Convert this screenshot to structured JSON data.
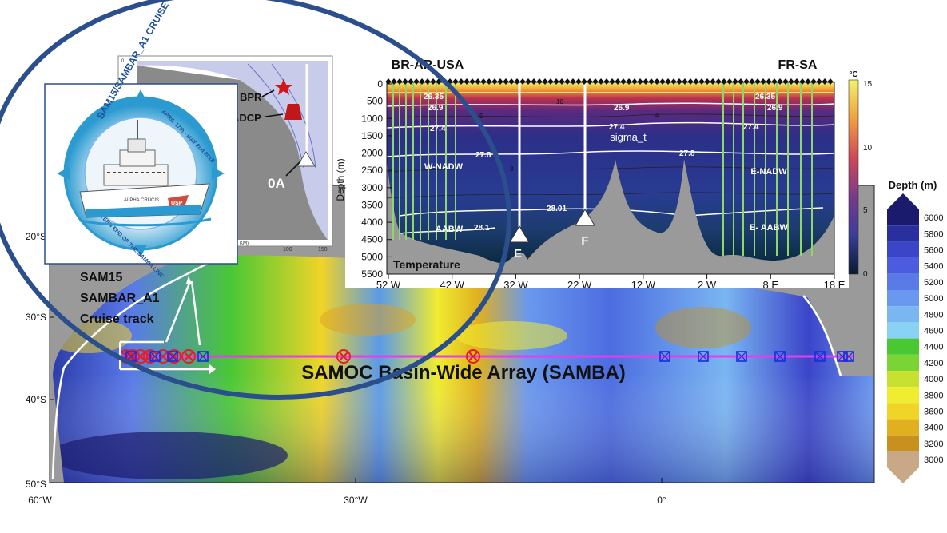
{
  "map": {
    "lat_labels": [
      "20°S",
      "30°S",
      "40°S",
      "50°S"
    ],
    "lon_labels": [
      "60°W",
      "30°W",
      "0°"
    ],
    "array_title": "SAMOC Basin-Wide Array (SAMBA)",
    "cruise_label": [
      "SAM15",
      "SAMBAR_A1",
      "Cruise track"
    ],
    "colors": {
      "array_line": "#e83cf0",
      "circle_marker": "#e0202a",
      "square_marker": "#1a2be0",
      "ellipse": "#2b4f8c"
    }
  },
  "depth_legend": {
    "title": "Depth (m)",
    "labels": [
      "6000",
      "5800",
      "5600",
      "5400",
      "5200",
      "5000",
      "4800",
      "4600",
      "4400",
      "4200",
      "4000",
      "3800",
      "3600",
      "3400",
      "3200",
      "3000"
    ],
    "colors": [
      "#1b1b6e",
      "#2a2fa0",
      "#3b45c8",
      "#4c5ce0",
      "#5a7ae8",
      "#6a98ee",
      "#7ab6f2",
      "#8ad2f4",
      "#49c834",
      "#7ad436",
      "#c8e030",
      "#f0ec30",
      "#f0d428",
      "#e0b020",
      "#c8901c",
      "#c8a886"
    ]
  },
  "inset_logo": {
    "ring_top": "SAM15/SAMBAR_A1 CRUISE",
    "ring_date": "APRIL 17th - MAY 2nd 2018",
    "ring_bottom": "WESTERN END OF THE SAMBA LINE",
    "ship_name": "ALPHA CRUCIS",
    "hull_text": "USP"
  },
  "inset_shelf": {
    "bpr": "BPR",
    "adcp": "ADCP",
    "station": "0A",
    "top_tick": "0",
    "x_ticks": [
      "100",
      "150"
    ],
    "x_unit": "KM)"
  },
  "section": {
    "left_label": "BR-AR-USA",
    "right_label": "FR-SA",
    "y_title": "Depth (m)",
    "y_ticks": [
      "0",
      "500",
      "1000",
      "1500",
      "2000",
      "2500",
      "3000",
      "3500",
      "4000",
      "4500",
      "5000",
      "5500"
    ],
    "x_ticks": [
      "52 W",
      "42 W",
      "32 W",
      "22 W",
      "12 W",
      "2 W",
      "8 E",
      "18 E"
    ],
    "isopycnals": [
      "26.35",
      "26.9",
      "27.4",
      "27.8",
      "28.01",
      "28.1"
    ],
    "isotherms": [
      "10",
      "5",
      "4",
      "3"
    ],
    "water_masses": [
      "W-NADW",
      "E-NADW",
      "AABW",
      "E- AABW"
    ],
    "sigma_label": "sigma_t",
    "panel_label": "Temperature",
    "station_E": "E",
    "station_F": "F",
    "colorbar_unit": "°C",
    "colorbar_ticks": [
      "15",
      "10",
      "5",
      "0"
    ]
  }
}
